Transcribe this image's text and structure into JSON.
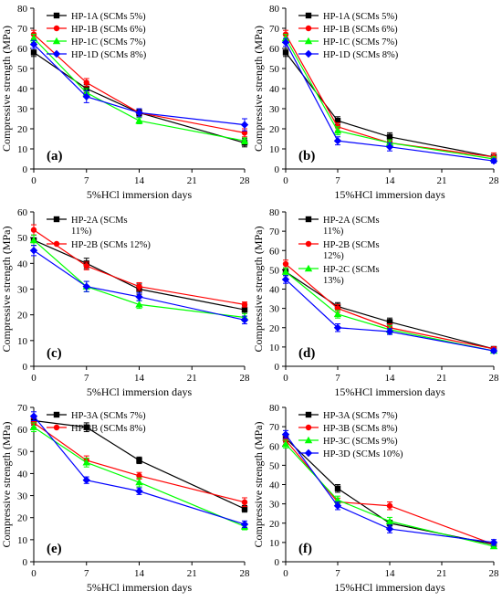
{
  "chart_data": [
    {
      "type": "line",
      "panel_label": "(a)",
      "xlabel": "5%HCl immersion days",
      "ylabel": "Compressive strength (MPa)",
      "xlim": [
        0,
        28
      ],
      "ylim": [
        0,
        80
      ],
      "xticks": [
        0,
        7,
        14,
        21,
        28
      ],
      "yticks": [
        0,
        10,
        20,
        30,
        40,
        50,
        60,
        70,
        80
      ],
      "x": [
        0,
        7,
        14,
        28
      ],
      "legend_position": "top-left",
      "series": [
        {
          "name": "HP-1A (SCMs 5%)",
          "color": "#000000",
          "marker": "square",
          "values": [
            58,
            40,
            28,
            13
          ],
          "errors": [
            2,
            2,
            1.5,
            2
          ]
        },
        {
          "name": "HP-1B (SCMs 6%)",
          "color": "#ff0000",
          "marker": "circle",
          "values": [
            67,
            43,
            28,
            18
          ],
          "errors": [
            2,
            2,
            2,
            2
          ]
        },
        {
          "name": "HP-1C (SCMs 7%)",
          "color": "#00ff00",
          "marker": "triangle",
          "values": [
            65,
            38,
            24,
            14
          ],
          "errors": [
            2,
            2,
            1.5,
            1.5
          ]
        },
        {
          "name": "HP-1D (SCMs 8%)",
          "color": "#0000ff",
          "marker": "diamond",
          "values": [
            62,
            36,
            28,
            22
          ],
          "errors": [
            2,
            3,
            2,
            3
          ]
        }
      ]
    },
    {
      "type": "line",
      "panel_label": "(b)",
      "xlabel": "15%HCl immersion days",
      "ylabel": "Compressive strength (MPa)",
      "xlim": [
        0,
        28
      ],
      "ylim": [
        0,
        80
      ],
      "xticks": [
        0,
        7,
        14,
        21,
        28
      ],
      "yticks": [
        0,
        10,
        20,
        30,
        40,
        50,
        60,
        70,
        80
      ],
      "x": [
        0,
        7,
        14,
        28
      ],
      "legend_position": "top-right",
      "series": [
        {
          "name": "HP-1A (SCMs 5%)",
          "color": "#000000",
          "marker": "square",
          "values": [
            58,
            24,
            16,
            6
          ],
          "errors": [
            2,
            2,
            2,
            1
          ]
        },
        {
          "name": "HP-1B (SCMs 6%)",
          "color": "#ff0000",
          "marker": "circle",
          "values": [
            67,
            21,
            13,
            6
          ],
          "errors": [
            2,
            2,
            1.5,
            2
          ]
        },
        {
          "name": "HP-1C (SCMs 7%)",
          "color": "#00ff00",
          "marker": "triangle",
          "values": [
            65,
            19,
            13,
            5
          ],
          "errors": [
            2,
            2,
            1.5,
            1
          ]
        },
        {
          "name": "HP-1D (SCMs 8%)",
          "color": "#0000ff",
          "marker": "diamond",
          "values": [
            63,
            14,
            11,
            4
          ],
          "errors": [
            2,
            2,
            2,
            1
          ]
        }
      ]
    },
    {
      "type": "line",
      "panel_label": "(c)",
      "xlabel": "5%HCl immersion days",
      "ylabel": "Compressive strength (MPa)",
      "xlim": [
        0,
        28
      ],
      "ylim": [
        0,
        60
      ],
      "xticks": [
        0,
        7,
        14,
        21,
        28
      ],
      "yticks": [
        0,
        10,
        20,
        30,
        40,
        50,
        60
      ],
      "x": [
        0,
        7,
        14,
        28
      ],
      "legend_position": "top-left",
      "series": [
        {
          "name": "HP-2A (SCMs 11%)",
          "legend_lines": [
            "HP-2A (SCMs",
            "11%)"
          ],
          "color": "#000000",
          "marker": "square",
          "values": [
            49,
            40,
            30,
            22
          ],
          "errors": [
            2,
            2,
            2,
            1.5
          ]
        },
        {
          "name": "HP-2B (SCMs 12%)",
          "legend_lines": [
            "HP-2B (SCMs 12%)"
          ],
          "color": "#ff0000",
          "marker": "circle",
          "values": [
            53,
            39,
            31,
            24
          ],
          "errors": [
            2,
            1.5,
            1.5,
            1
          ]
        },
        {
          "name": "",
          "legend_lines": [],
          "color": "#00ff00",
          "marker": "triangle",
          "values": [
            49,
            31,
            24,
            19
          ],
          "errors": [
            2,
            2,
            1.5,
            1.5
          ]
        },
        {
          "name": "",
          "legend_lines": [],
          "color": "#0000ff",
          "marker": "diamond",
          "values": [
            45,
            31,
            27,
            18
          ],
          "errors": [
            2,
            2,
            1.5,
            1.5
          ]
        }
      ]
    },
    {
      "type": "line",
      "panel_label": "(d)",
      "xlabel": "15%HCl immersion days",
      "ylabel": "Compressive strength (MPa)",
      "xlim": [
        0,
        28
      ],
      "ylim": [
        0,
        80
      ],
      "xticks": [
        0,
        7,
        14,
        21,
        28
      ],
      "yticks": [
        0,
        10,
        20,
        30,
        40,
        50,
        60,
        70,
        80
      ],
      "x": [
        0,
        7,
        14,
        28
      ],
      "legend_position": "top-right",
      "series": [
        {
          "name": "HP-2A (SCMs 11%)",
          "legend_lines": [
            "HP-2A (SCMs",
            "11%)"
          ],
          "color": "#000000",
          "marker": "square",
          "values": [
            49,
            31,
            23,
            9
          ],
          "errors": [
            2,
            2,
            2,
            1
          ]
        },
        {
          "name": "HP-2B (SCMs 12%)",
          "legend_lines": [
            "HP-2B (SCMs",
            "12%)"
          ],
          "color": "#ff0000",
          "marker": "circle",
          "values": [
            53,
            30,
            20,
            9
          ],
          "errors": [
            2,
            2,
            2,
            1
          ]
        },
        {
          "name": "HP-2C (SCMs 13%)",
          "legend_lines": [
            "HP-2C (SCMs",
            "13%)"
          ],
          "color": "#00ff00",
          "marker": "triangle",
          "values": [
            49,
            27,
            19,
            8
          ],
          "errors": [
            2,
            2,
            2,
            1
          ]
        },
        {
          "name": "",
          "legend_lines": [],
          "color": "#0000ff",
          "marker": "diamond",
          "values": [
            45,
            20,
            18,
            8
          ],
          "errors": [
            2,
            2,
            1.5,
            1
          ]
        }
      ]
    },
    {
      "type": "line",
      "panel_label": "(e)",
      "xlabel": "5%HCl immersion days",
      "ylabel": "Compressive strength (MPa)",
      "xlim": [
        0,
        28
      ],
      "ylim": [
        0,
        70
      ],
      "xticks": [
        0,
        7,
        14,
        21,
        28
      ],
      "yticks": [
        0,
        10,
        20,
        30,
        40,
        50,
        60,
        70
      ],
      "x": [
        0,
        7,
        14,
        28
      ],
      "legend_position": "top-left",
      "series": [
        {
          "name": "HP-3A (SCMs 7%)",
          "color": "#000000",
          "marker": "square",
          "values": [
            64,
            61,
            46,
            24
          ],
          "errors": [
            2,
            2,
            1.5,
            1.5
          ]
        },
        {
          "name": "HP-3B (SCMs 8%)",
          "color": "#ff0000",
          "marker": "circle",
          "values": [
            63,
            46,
            39,
            27
          ],
          "errors": [
            2,
            2,
            1.5,
            2
          ]
        },
        {
          "name": "",
          "color": "#00ff00",
          "marker": "triangle",
          "values": [
            61,
            45,
            36,
            16
          ],
          "errors": [
            2,
            2,
            2,
            1.5
          ]
        },
        {
          "name": "",
          "color": "#0000ff",
          "marker": "diamond",
          "values": [
            66,
            37,
            32,
            17
          ],
          "errors": [
            2,
            1.5,
            1.5,
            1.5
          ]
        }
      ]
    },
    {
      "type": "line",
      "panel_label": "(f)",
      "xlabel": "15%HCl immersion days",
      "ylabel": "Compressive strength (MPa)",
      "xlim": [
        0,
        28
      ],
      "ylim": [
        0,
        80
      ],
      "xticks": [
        0,
        7,
        14,
        21,
        28
      ],
      "yticks": [
        0,
        10,
        20,
        30,
        40,
        50,
        60,
        70,
        80
      ],
      "x": [
        0,
        7,
        14,
        28
      ],
      "legend_position": "top-right",
      "series": [
        {
          "name": "HP-3A (SCMs 7%)",
          "color": "#000000",
          "marker": "square",
          "values": [
            64,
            38,
            20,
            9
          ],
          "errors": [
            2,
            2,
            1.5,
            1
          ]
        },
        {
          "name": "HP-3B (SCMs 8%)",
          "color": "#ff0000",
          "marker": "circle",
          "values": [
            63,
            31,
            29,
            9
          ],
          "errors": [
            2,
            2,
            2,
            1
          ]
        },
        {
          "name": "HP-3C (SCMs 9%)",
          "color": "#00ff00",
          "marker": "triangle",
          "values": [
            61,
            32,
            21,
            8
          ],
          "errors": [
            2,
            2,
            2,
            1
          ]
        },
        {
          "name": "HP-3D (SCMs 10%)",
          "color": "#0000ff",
          "marker": "diamond",
          "values": [
            66,
            29,
            17,
            10
          ],
          "errors": [
            2,
            2,
            2,
            1.5
          ]
        }
      ]
    }
  ]
}
